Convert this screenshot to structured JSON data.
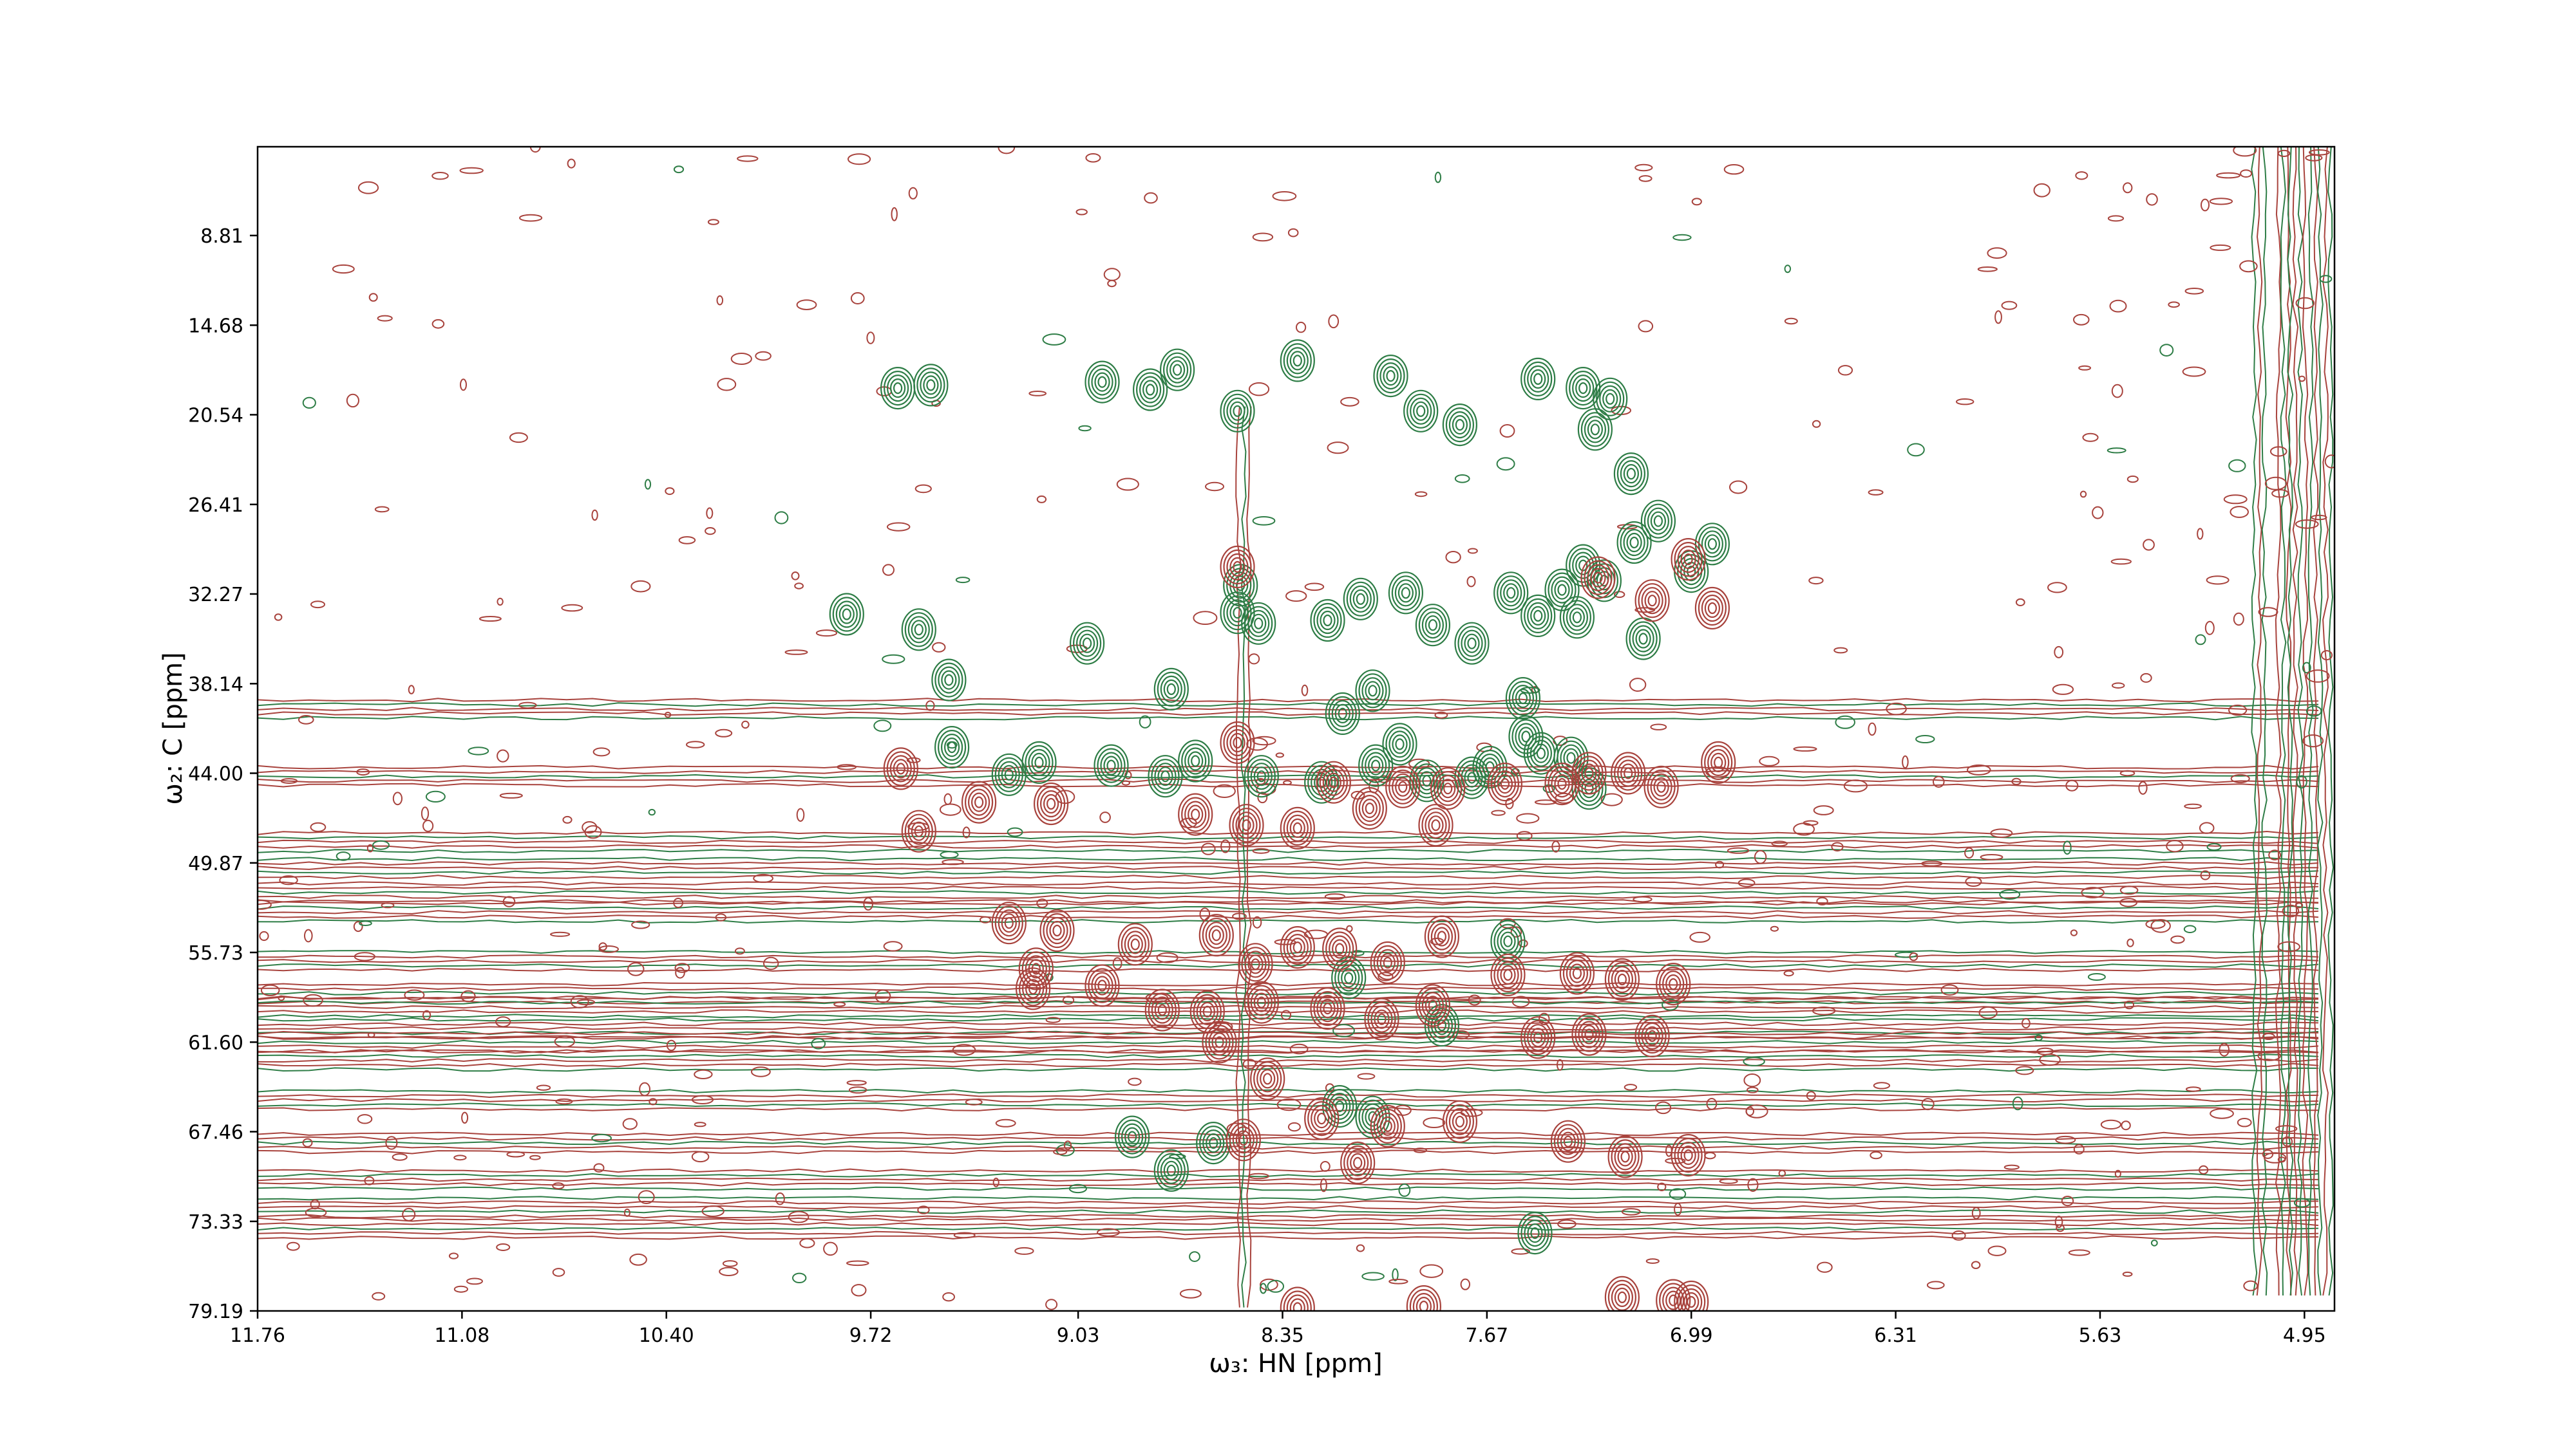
{
  "chart_data": {
    "type": "contour",
    "xlabel": "ω₃: HN [ppm]",
    "ylabel": "ω₂: C [ppm]",
    "xlim": [
      11.76,
      4.85
    ],
    "ylim": [
      79.19,
      3.0
    ],
    "x_ticks": [
      "11.76",
      "11.08",
      "10.40",
      "9.72",
      "9.03",
      "8.35",
      "7.67",
      "6.99",
      "6.31",
      "5.63",
      "4.95"
    ],
    "y_ticks": [
      "8.81",
      "14.68",
      "20.54",
      "26.41",
      "32.27",
      "38.14",
      "44.00",
      "49.87",
      "55.73",
      "61.60",
      "67.46",
      "73.33",
      "79.19"
    ],
    "grid": false,
    "colors": {
      "positive": "#a8433d",
      "negative": "#2e7d46"
    },
    "series": [
      {
        "sign": "negative",
        "peaks": [
          [
            9.63,
            18.8
          ],
          [
            9.52,
            18.6
          ],
          [
            8.95,
            18.4
          ],
          [
            8.79,
            18.9
          ],
          [
            8.7,
            17.6
          ],
          [
            8.5,
            20.3
          ],
          [
            8.3,
            17.0
          ],
          [
            7.99,
            18.0
          ],
          [
            7.89,
            20.3
          ],
          [
            7.76,
            21.2
          ],
          [
            7.5,
            18.2
          ],
          [
            7.35,
            18.8
          ],
          [
            7.31,
            21.5
          ],
          [
            7.26,
            19.5
          ],
          [
            7.19,
            24.4
          ],
          [
            7.18,
            28.9
          ],
          [
            7.1,
            27.5
          ],
          [
            6.99,
            30.8
          ],
          [
            6.92,
            29.0
          ],
          [
            9.8,
            33.6
          ],
          [
            9.56,
            34.6
          ],
          [
            9.0,
            35.5
          ],
          [
            8.72,
            38.5
          ],
          [
            8.5,
            33.5
          ],
          [
            8.43,
            34.2
          ],
          [
            8.49,
            31.7
          ],
          [
            8.2,
            34.0
          ],
          [
            8.09,
            32.6
          ],
          [
            7.94,
            32.2
          ],
          [
            7.85,
            34.3
          ],
          [
            7.72,
            35.5
          ],
          [
            7.59,
            32.2
          ],
          [
            7.5,
            33.7
          ],
          [
            7.42,
            32.0
          ],
          [
            7.37,
            33.8
          ],
          [
            7.35,
            30.4
          ],
          [
            7.28,
            31.4
          ],
          [
            7.15,
            35.2
          ],
          [
            9.46,
            37.9
          ],
          [
            9.45,
            42.3
          ],
          [
            9.26,
            44.1
          ],
          [
            9.16,
            43.3
          ],
          [
            8.92,
            43.5
          ],
          [
            8.74,
            44.2
          ],
          [
            8.64,
            43.2
          ],
          [
            8.42,
            44.2
          ],
          [
            8.22,
            44.6
          ],
          [
            8.04,
            43.5
          ],
          [
            7.96,
            42.1
          ],
          [
            7.87,
            44.5
          ],
          [
            7.72,
            44.3
          ],
          [
            7.66,
            43.6
          ],
          [
            7.54,
            41.6
          ],
          [
            7.49,
            42.7
          ],
          [
            7.39,
            43.0
          ],
          [
            7.33,
            45.0
          ],
          [
            8.15,
            40.1
          ],
          [
            8.05,
            38.6
          ],
          [
            7.55,
            39.1
          ],
          [
            8.85,
            67.8
          ],
          [
            8.72,
            70.0
          ],
          [
            8.58,
            68.2
          ],
          [
            8.16,
            65.8
          ],
          [
            8.05,
            66.5
          ],
          [
            7.51,
            74.1
          ],
          [
            7.6,
            55.0
          ],
          [
            7.82,
            60.5
          ],
          [
            8.13,
            57.4
          ]
        ]
      },
      {
        "sign": "positive",
        "peaks": [
          [
            8.5,
            42.0
          ],
          [
            8.5,
            30.5
          ],
          [
            7.3,
            31.2
          ],
          [
            7.12,
            32.7
          ],
          [
            7.0,
            30.0
          ],
          [
            6.92,
            33.2
          ],
          [
            6.9,
            43.3
          ],
          [
            7.42,
            44.7
          ],
          [
            7.33,
            44.0
          ],
          [
            7.2,
            44.0
          ],
          [
            7.09,
            44.9
          ],
          [
            8.18,
            44.6
          ],
          [
            7.95,
            44.9
          ],
          [
            7.8,
            45.0
          ],
          [
            7.61,
            44.7
          ],
          [
            9.56,
            47.8
          ],
          [
            9.36,
            45.9
          ],
          [
            9.12,
            46.0
          ],
          [
            8.64,
            46.7
          ],
          [
            8.47,
            47.4
          ],
          [
            8.3,
            47.6
          ],
          [
            8.06,
            46.3
          ],
          [
            7.84,
            47.4
          ],
          [
            9.26,
            53.8
          ],
          [
            9.1,
            54.3
          ],
          [
            8.84,
            55.2
          ],
          [
            8.57,
            54.6
          ],
          [
            8.44,
            56.5
          ],
          [
            8.3,
            55.4
          ],
          [
            8.16,
            55.5
          ],
          [
            8.0,
            56.4
          ],
          [
            7.82,
            54.7
          ],
          [
            7.6,
            57.2
          ],
          [
            7.37,
            57.1
          ],
          [
            7.22,
            57.5
          ],
          [
            7.05,
            57.8
          ],
          [
            9.18,
            58.1
          ],
          [
            8.95,
            57.9
          ],
          [
            8.75,
            59.5
          ],
          [
            8.6,
            59.6
          ],
          [
            8.42,
            59.0
          ],
          [
            8.2,
            59.4
          ],
          [
            8.02,
            60.1
          ],
          [
            7.85,
            59.2
          ],
          [
            7.5,
            61.3
          ],
          [
            7.33,
            61.1
          ],
          [
            7.12,
            61.2
          ],
          [
            8.56,
            61.6
          ],
          [
            8.4,
            64.0
          ],
          [
            8.22,
            66.6
          ],
          [
            8.0,
            67.1
          ],
          [
            7.76,
            66.8
          ],
          [
            7.4,
            68.1
          ],
          [
            7.21,
            69.1
          ],
          [
            7.0,
            69.0
          ],
          [
            8.48,
            68.0
          ],
          [
            8.1,
            69.5
          ],
          [
            7.22,
            78.3
          ],
          [
            7.05,
            78.5
          ],
          [
            6.99,
            78.6
          ],
          [
            8.3,
            79.0
          ],
          [
            7.88,
            78.9
          ],
          [
            9.62,
            43.7
          ],
          [
            9.17,
            56.8
          ]
        ]
      }
    ],
    "ridges": {
      "horizontal_ppm": [
        44.2,
        48.5,
        50.2,
        51.8,
        53.1,
        56.3,
        58.4,
        59.3,
        60.7,
        61.6,
        62.8,
        65.4,
        68.2,
        70.6,
        72.4,
        73.8,
        39.8
      ],
      "vertical_ppm": [
        8.48,
        5.1,
        5.02,
        4.98,
        4.93,
        4.88
      ]
    }
  }
}
